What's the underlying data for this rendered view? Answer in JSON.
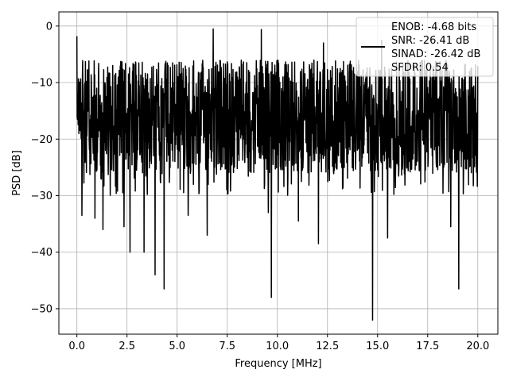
{
  "chart_data": {
    "type": "line",
    "title": "",
    "xlabel": "Frequency [MHz]",
    "ylabel": "PSD [dB]",
    "xlim": [
      -0.9,
      21.0
    ],
    "ylim": [
      -54.5,
      2.5
    ],
    "xticks": [
      0.0,
      2.5,
      5.0,
      7.5,
      10.0,
      12.5,
      15.0,
      17.5,
      20.0
    ],
    "xtick_labels": [
      "0.0",
      "2.5",
      "5.0",
      "7.5",
      "10.0",
      "12.5",
      "15.0",
      "17.5",
      "20.0"
    ],
    "yticks": [
      0,
      -10,
      -20,
      -30,
      -40,
      -50
    ],
    "ytick_labels": [
      "0",
      "−10",
      "−20",
      "−30",
      "−40",
      "−50"
    ],
    "grid": true,
    "legend_position": "upper-right",
    "legend_lines": [
      "ENOB: -4.68 bits",
      "SNR: -26.41 dB",
      "SINAD: -26.42 dB",
      "SFDR: 0.54"
    ],
    "series": [
      {
        "color": "#000000",
        "x_range": [
          0.0,
          20.0
        ],
        "description_of_shape": "dense noisy PSD trace, mostly between about -5 and -28 dB",
        "deep_dips": [
          {
            "x": 0.25,
            "y": -33.5
          },
          {
            "x": 0.9,
            "y": -34.0
          },
          {
            "x": 1.3,
            "y": -36.0
          },
          {
            "x": 2.35,
            "y": -35.5
          },
          {
            "x": 2.65,
            "y": -40.0
          },
          {
            "x": 3.35,
            "y": -40.0
          },
          {
            "x": 3.9,
            "y": -44.0
          },
          {
            "x": 4.35,
            "y": -46.5
          },
          {
            "x": 5.55,
            "y": -33.5
          },
          {
            "x": 6.5,
            "y": -37.0
          },
          {
            "x": 9.55,
            "y": -33.0
          },
          {
            "x": 9.7,
            "y": -48.0
          },
          {
            "x": 11.05,
            "y": -34.5
          },
          {
            "x": 12.05,
            "y": -38.5
          },
          {
            "x": 14.75,
            "y": -52.0
          },
          {
            "x": 15.5,
            "y": -37.5
          },
          {
            "x": 18.65,
            "y": -35.5
          },
          {
            "x": 19.05,
            "y": -46.5
          }
        ],
        "peaks": [
          {
            "x": 0.0,
            "y": -1.8
          },
          {
            "x": 6.8,
            "y": -0.5
          },
          {
            "x": 9.2,
            "y": -0.6
          },
          {
            "x": 12.3,
            "y": -3.0
          },
          {
            "x": 15.2,
            "y": -2.5
          }
        ]
      }
    ]
  }
}
